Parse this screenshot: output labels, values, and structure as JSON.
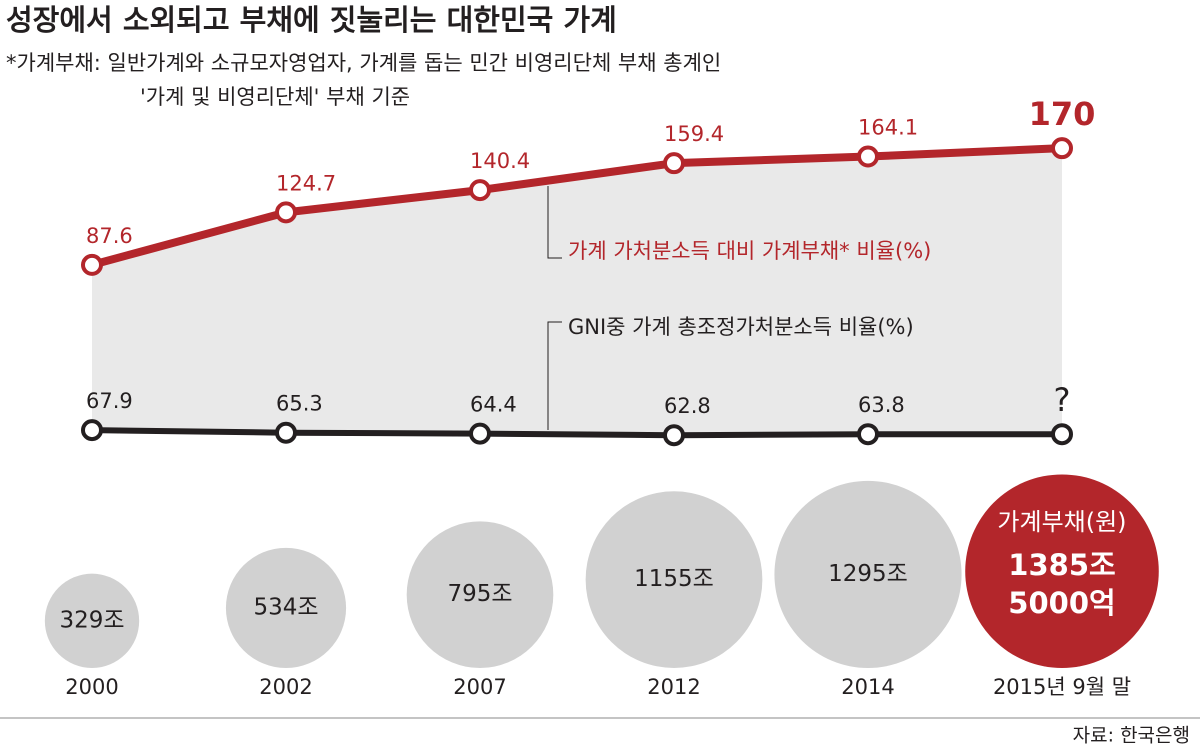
{
  "chart_data": {
    "type": "line",
    "title": "성장에서 소외되고 부채에 짓눌리는 대한민국 가계",
    "note": [
      "*가계부채: 일반가계와 소규모자영업자, 가계를 돕는 민간 비영리단체 부채 총계인",
      "'가계 및 비영리단체' 부채 기준"
    ],
    "categories": [
      "2000",
      "2002",
      "2007",
      "2012",
      "2014",
      "2015년 9월 말"
    ],
    "series": [
      {
        "name": "가계 가처분소득 대비 가계부채* 비율(%)",
        "color": "#b3262b",
        "values": [
          87.6,
          124.7,
          140.4,
          159.4,
          164.1,
          170
        ]
      },
      {
        "name": "GNI중 가계 총조정가처분소득 비율(%)",
        "color": "#231f20",
        "axis": "y2",
        "values": [
          67.9,
          65.3,
          64.4,
          62.8,
          63.8,
          null
        ],
        "value_labels": [
          "67.9",
          "65.3",
          "64.4",
          "62.8",
          "63.8",
          "?"
        ]
      }
    ],
    "ylim": [
      60,
      180
    ],
    "y2lim": [
      0,
      100
    ],
    "bubbles": {
      "name": "가계부채(원)",
      "values": [
        329,
        534,
        795,
        1155,
        1295,
        1385.5
      ],
      "value_labels": [
        "329조",
        "534조",
        "795조",
        "1155조",
        "1295조",
        "1385조 5000억"
      ],
      "color": "#d1d1d1",
      "highlight_color": "#b3262b"
    },
    "source": "자료: 한국은행"
  }
}
